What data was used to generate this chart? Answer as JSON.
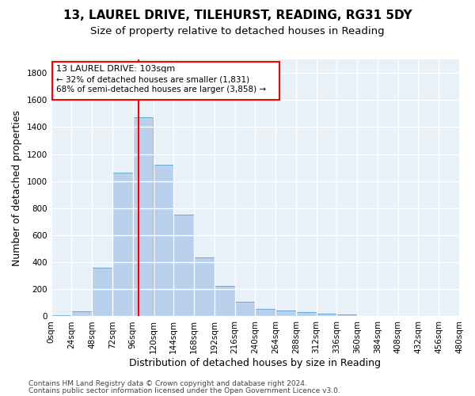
{
  "title": "13, LAUREL DRIVE, TILEHURST, READING, RG31 5DY",
  "subtitle": "Size of property relative to detached houses in Reading",
  "xlabel": "Distribution of detached houses by size in Reading",
  "ylabel": "Number of detached properties",
  "bin_edges": [
    0,
    24,
    48,
    72,
    96,
    120,
    144,
    168,
    192,
    216,
    240,
    264,
    288,
    312,
    336,
    360,
    384,
    408,
    432,
    456,
    480
  ],
  "bar_heights": [
    10,
    35,
    360,
    1060,
    1470,
    1120,
    750,
    435,
    225,
    110,
    55,
    45,
    30,
    20,
    15,
    2,
    2,
    2,
    2,
    2
  ],
  "bar_color": "#b8d0eb",
  "bar_edgecolor": "#6aaad4",
  "property_line_x": 103,
  "annotation_line1": "13 LAUREL DRIVE: 103sqm",
  "annotation_line2": "← 32% of detached houses are smaller (1,831)",
  "annotation_line3": "68% of semi-detached houses are larger (3,858) →",
  "box_color": "red",
  "vline_color": "red",
  "ylim": [
    0,
    1900
  ],
  "yticks": [
    0,
    200,
    400,
    600,
    800,
    1000,
    1200,
    1400,
    1600,
    1800
  ],
  "footer_line1": "Contains HM Land Registry data © Crown copyright and database right 2024.",
  "footer_line2": "Contains public sector information licensed under the Open Government Licence v3.0.",
  "bg_color": "#e8f0f8",
  "grid_color": "#ffffff",
  "title_fontsize": 11,
  "subtitle_fontsize": 9.5,
  "axis_label_fontsize": 9,
  "tick_fontsize": 7.5,
  "annotation_fontsize": 8,
  "footer_fontsize": 6.5
}
